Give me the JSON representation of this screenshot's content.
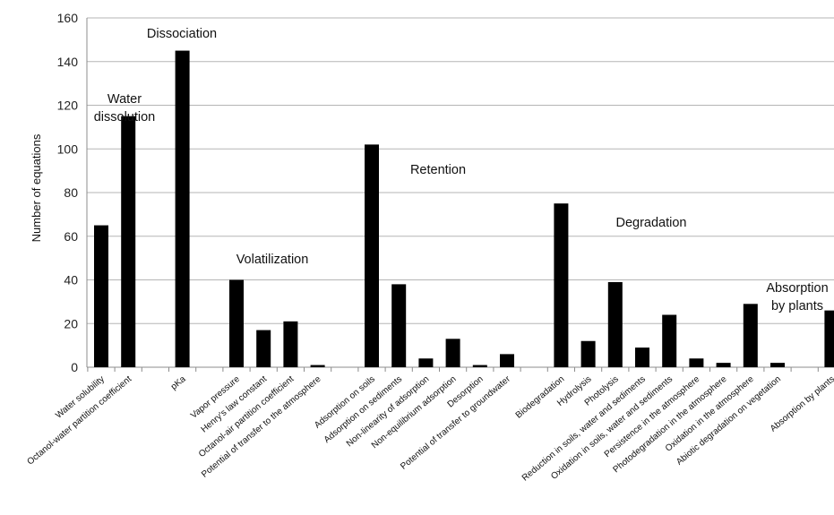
{
  "chart_data": {
    "type": "bar",
    "ylabel": "Number of equations",
    "ylim": [
      0,
      160
    ],
    "yticks": [
      0,
      20,
      40,
      60,
      80,
      100,
      120,
      140,
      160
    ],
    "grid": true,
    "bar_color": "#000000",
    "slots": 28,
    "categories": [
      {
        "label": "Water solubility",
        "value": 65,
        "slot": 0
      },
      {
        "label": "Octanol-water partition coefficient",
        "value": 115,
        "slot": 1
      },
      {
        "label": "pKa",
        "value": 145,
        "slot": 3
      },
      {
        "label": "Vapor pressure",
        "value": 40,
        "slot": 5
      },
      {
        "label": "Henry's law constant",
        "value": 17,
        "slot": 6
      },
      {
        "label": "Octanol-air partition coefficient",
        "value": 21,
        "slot": 7
      },
      {
        "label": "Potential of transfer to the atmosphere",
        "value": 1,
        "slot": 8
      },
      {
        "label": "Adsorption on soils",
        "value": 102,
        "slot": 10
      },
      {
        "label": "Adsorption on sediments",
        "value": 38,
        "slot": 11
      },
      {
        "label": "Non-linearity of adsorption",
        "value": 4,
        "slot": 12
      },
      {
        "label": "Non-equilibrium adsorption",
        "value": 13,
        "slot": 13
      },
      {
        "label": "Desorption",
        "value": 1,
        "slot": 14
      },
      {
        "label": "Potential of transfer to groundwater",
        "value": 6,
        "slot": 15
      },
      {
        "label": "Biodegradation",
        "value": 75,
        "slot": 17
      },
      {
        "label": "Hydrolysis",
        "value": 12,
        "slot": 18
      },
      {
        "label": "Photolysis",
        "value": 39,
        "slot": 19
      },
      {
        "label": "Reduction in soils, water and sediments",
        "value": 9,
        "slot": 20
      },
      {
        "label": "Oxidation in soils, water and sediments",
        "value": 24,
        "slot": 21
      },
      {
        "label": "Persistence in the atmosphere",
        "value": 4,
        "slot": 22
      },
      {
        "label": "Photodegradation in the atmosphere",
        "value": 2,
        "slot": 23
      },
      {
        "label": "Oxidation in the atmosphere",
        "value": 29,
        "slot": 24
      },
      {
        "label": "Abiotic degradation on vegetation",
        "value": 2,
        "slot": 25
      },
      {
        "label": "Absorption by plants",
        "value": 26,
        "slot": 27
      }
    ],
    "annotations": [
      {
        "lines": [
          "Water",
          "dissolution"
        ]
      },
      {
        "lines": [
          "Dissociation"
        ]
      },
      {
        "lines": [
          "Volatilization"
        ]
      },
      {
        "lines": [
          "Retention"
        ]
      },
      {
        "lines": [
          "Degradation"
        ]
      },
      {
        "lines": [
          "Absorption",
          "by plants"
        ]
      }
    ]
  }
}
